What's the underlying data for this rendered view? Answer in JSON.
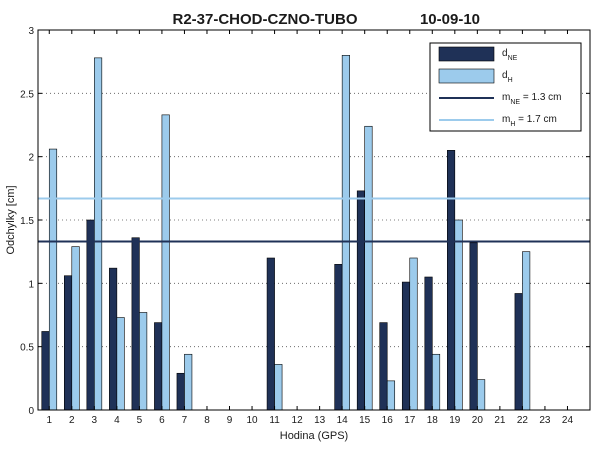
{
  "chart_data": {
    "type": "bar",
    "title_left": "R2-37-CHOD-CZNO-TUBO",
    "title_right": "10-09-10",
    "xlabel": "Hodina (GPS)",
    "ylabel": "Odchylky [cm]",
    "ylim": [
      0,
      3
    ],
    "yticks": [
      "0",
      "0.5",
      "1",
      "1.5",
      "2",
      "2.5",
      "3"
    ],
    "categories": [
      "1",
      "2",
      "3",
      "4",
      "5",
      "6",
      "7",
      "8",
      "9",
      "10",
      "11",
      "12",
      "13",
      "14",
      "15",
      "16",
      "17",
      "18",
      "19",
      "20",
      "21",
      "22",
      "23",
      "24"
    ],
    "grid": "horizontal-dotted",
    "legend_position": "top-right",
    "colors": {
      "dNE": "#1f3157",
      "dH": "#9ccbec",
      "mNE": "#1f3157",
      "mH": "#9ccbec"
    },
    "series": [
      {
        "name": "dNE",
        "key": "dNE",
        "values": [
          0.62,
          1.06,
          1.5,
          1.12,
          1.36,
          0.69,
          0.29,
          null,
          null,
          null,
          1.2,
          null,
          null,
          1.15,
          1.73,
          0.69,
          1.01,
          1.05,
          2.05,
          1.32,
          null,
          0.92,
          null,
          null
        ]
      },
      {
        "name": "dH",
        "key": "dH",
        "values": [
          2.06,
          1.29,
          2.78,
          0.73,
          0.77,
          2.33,
          0.44,
          null,
          null,
          null,
          0.36,
          null,
          null,
          2.8,
          2.24,
          0.23,
          1.2,
          0.44,
          1.5,
          0.24,
          null,
          1.25,
          null,
          null
        ]
      }
    ],
    "reference_lines": [
      {
        "key": "mNE",
        "value": 1.33
      },
      {
        "key": "mH",
        "value": 1.67
      }
    ],
    "legend": [
      {
        "key": "dNE",
        "main": "d",
        "sub": "NE",
        "tail": "",
        "kind": "bar"
      },
      {
        "key": "dH",
        "main": "d",
        "sub": "H",
        "tail": "",
        "kind": "bar"
      },
      {
        "key": "mNE",
        "main": "m",
        "sub": "NE",
        "tail": " = 1.3 cm",
        "kind": "line"
      },
      {
        "key": "mH",
        "main": "m",
        "sub": "H",
        "tail": " = 1.7 cm",
        "kind": "line"
      }
    ]
  }
}
